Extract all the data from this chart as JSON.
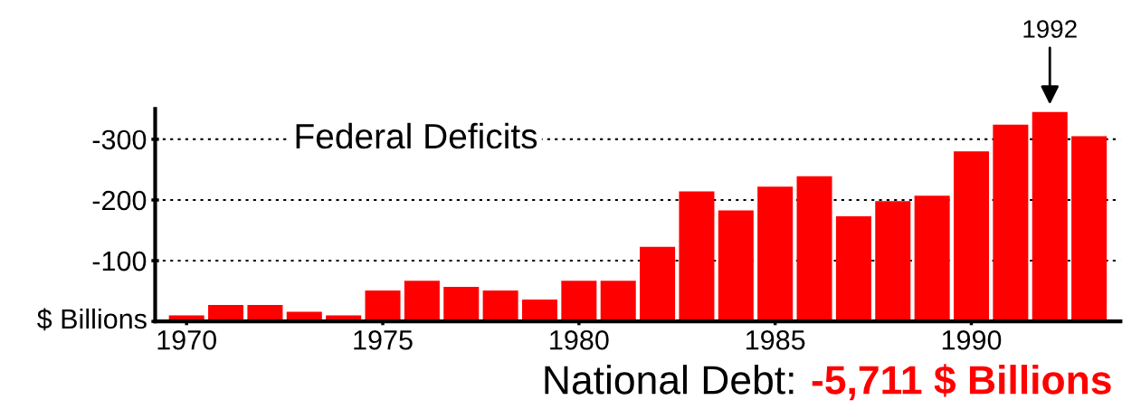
{
  "chart_data": {
    "type": "bar",
    "title": "Federal Deficits",
    "ylabel": "$ Billions",
    "x": [
      1970,
      1971,
      1972,
      1973,
      1974,
      1975,
      1976,
      1977,
      1978,
      1979,
      1980,
      1981,
      1982,
      1983,
      1984,
      1985,
      1986,
      1987,
      1988,
      1989,
      1990,
      1991,
      1992,
      1993
    ],
    "values": [
      -10,
      -27,
      -27,
      -16,
      -10,
      -51,
      -67,
      -57,
      -51,
      -36,
      -67,
      -67,
      -123,
      -214,
      -183,
      -222,
      -239,
      -173,
      -198,
      -207,
      -280,
      -324,
      -345,
      -305
    ],
    "color": "#ff0000",
    "xlim": [
      1969.2,
      1993.8
    ],
    "xticks": [
      1970,
      1975,
      1980,
      1985,
      1990
    ],
    "ylim": [
      0,
      -350
    ],
    "yticks": [
      {
        "value": 0,
        "label": null
      },
      -100,
      -200,
      -300
    ],
    "grid": "y",
    "annotations": [
      {
        "text": "1992",
        "x": 1992,
        "y": -345
      },
      "National Debt:",
      "-5,711 $ Billions"
    ]
  }
}
